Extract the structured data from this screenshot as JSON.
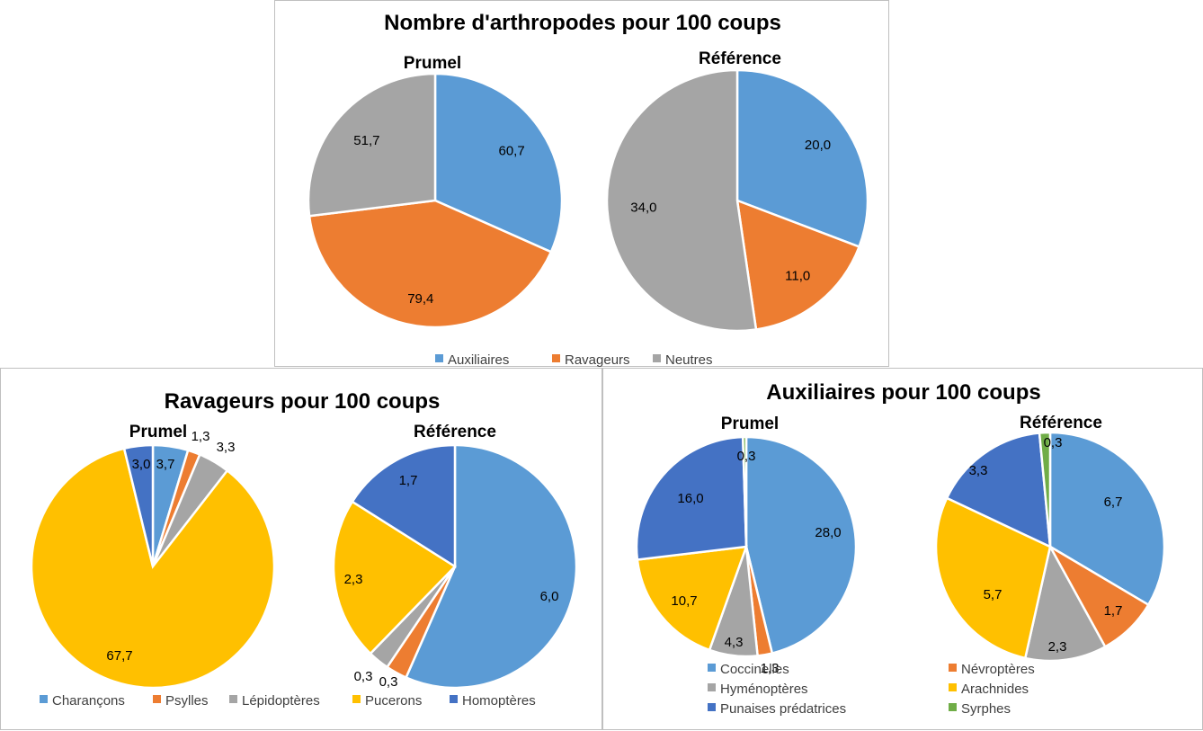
{
  "chart_data": [
    {
      "type": "pie",
      "title": "Nombre d'arthropodes pour 100 coups",
      "legend": [
        "Auxiliaires",
        "Ravageurs",
        "Neutres"
      ],
      "legend_position": "bottom",
      "colors": [
        "#5b9bd5",
        "#ed7d31",
        "#a5a5a5"
      ],
      "pies": [
        {
          "title": "Prumel",
          "values": [
            60.7,
            79.4,
            51.7
          ],
          "labels": [
            "60,7",
            "79,4",
            "51,7"
          ]
        },
        {
          "title": "Référence",
          "values": [
            20.0,
            11.0,
            34.0
          ],
          "labels": [
            "20,0",
            "11,0",
            "34,0"
          ]
        }
      ]
    },
    {
      "type": "pie",
      "title": "Ravageurs pour 100 coups",
      "legend": [
        "Charançons",
        "Psylles",
        "Lépidoptères",
        "Pucerons",
        "Homoptères"
      ],
      "legend_position": "bottom",
      "colors": [
        "#5b9bd5",
        "#ed7d31",
        "#a5a5a5",
        "#ffc000",
        "#4472c4"
      ],
      "pies": [
        {
          "title": "Prumel",
          "values": [
            3.7,
            1.3,
            3.3,
            67.7,
            3.0
          ],
          "labels": [
            "3,7",
            "1,3",
            "3,3",
            "67,7",
            "3,0"
          ]
        },
        {
          "title": "Référence",
          "values": [
            6.0,
            0.3,
            0.3,
            2.3,
            1.7
          ],
          "labels": [
            "6,0",
            "0,3",
            "0,3",
            "2,3",
            "1,7"
          ]
        }
      ]
    },
    {
      "type": "pie",
      "title": "Auxiliaires pour 100 coups",
      "legend": [
        "Coccinelles",
        "Névroptères",
        "Hyménoptères",
        "Arachnides",
        "Punaises prédatrices",
        "Syrphes"
      ],
      "legend_position": "bottom",
      "colors": [
        "#5b9bd5",
        "#ed7d31",
        "#a5a5a5",
        "#ffc000",
        "#4472c4",
        "#70ad47"
      ],
      "pies": [
        {
          "title": "Prumel",
          "values": [
            28.0,
            1.3,
            4.3,
            10.7,
            16.0,
            0.3
          ],
          "labels": [
            "28,0",
            "1,3",
            "4,3",
            "10,7",
            "16,0",
            "0,3"
          ]
        },
        {
          "title": "Référence",
          "values": [
            6.7,
            1.7,
            2.3,
            5.7,
            3.3,
            0.3
          ],
          "labels": [
            "6,7",
            "1,7",
            "2,3",
            "5,7",
            "3,3",
            "0,3"
          ]
        }
      ]
    }
  ]
}
